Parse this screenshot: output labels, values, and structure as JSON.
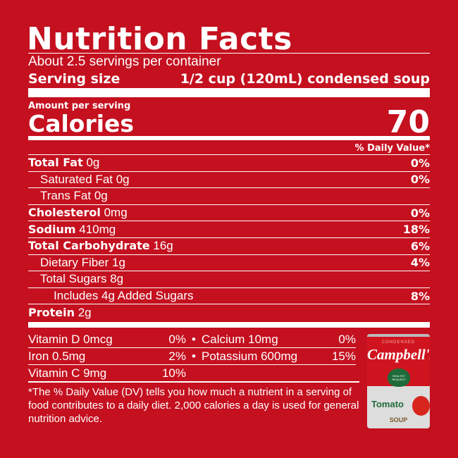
{
  "title": "Nutrition Facts",
  "servings": "About 2.5 servings per container",
  "serving_size_label": "Serving size",
  "serving_size_value": "1/2 cup (120mL) condensed soup",
  "amount_per_serving": "Amount per serving",
  "calories_label": "Calories",
  "calories_value": "70",
  "dv_header": "% Daily Value*",
  "nutrients": [
    {
      "name": "Total Fat",
      "amount": "0g",
      "dv": "0%",
      "bold": true,
      "indent": 0
    },
    {
      "name": "Saturated Fat 0g",
      "amount": "",
      "dv": "0%",
      "bold": false,
      "indent": 1
    },
    {
      "name": "Trans Fat 0g",
      "amount": "",
      "dv": "",
      "bold": false,
      "indent": 1
    },
    {
      "name": "Cholesterol",
      "amount": "0mg",
      "dv": "0%",
      "bold": true,
      "indent": 0
    },
    {
      "name": "Sodium",
      "amount": "410mg",
      "dv": "18%",
      "bold": true,
      "indent": 0
    },
    {
      "name": "Total Carbohydrate",
      "amount": "16g",
      "dv": "6%",
      "bold": true,
      "indent": 0
    },
    {
      "name": "Dietary Fiber 1g",
      "amount": "",
      "dv": "4%",
      "bold": false,
      "indent": 1
    },
    {
      "name": "Total Sugars 8g",
      "amount": "",
      "dv": "",
      "bold": false,
      "indent": 1
    },
    {
      "name": "Includes 4g Added Sugars",
      "amount": "",
      "dv": "8%",
      "bold": false,
      "indent": 2
    },
    {
      "name": "Protein",
      "amount": "2g",
      "dv": "",
      "bold": true,
      "indent": 0
    }
  ],
  "vitamins": [
    {
      "name": "Vitamin D 0mcg",
      "dv": "0%",
      "name2": "Calcium 10mg",
      "dv2": "0%"
    },
    {
      "name": "Iron 0.5mg",
      "dv": "2%",
      "name2": "Potassium 600mg",
      "dv2": "15%"
    },
    {
      "name": "Vitamin C 9mg",
      "dv": "10%"
    }
  ],
  "bullet": "•",
  "footnote": "*The % Daily Value (DV) tells you how much a nutrient in a serving of food contributes to a daily diet. 2,000 calories a day is used for general nutrition advice.",
  "can": {
    "top": "CONDENSED",
    "brand": "Campbell's",
    "badge": "HEALTHY REQUEST",
    "flavor": "Tomato",
    "type": "SOUP"
  },
  "colors": {
    "background": "#c4101f",
    "text": "#ffffff",
    "can_green": "#1f6b3a"
  }
}
